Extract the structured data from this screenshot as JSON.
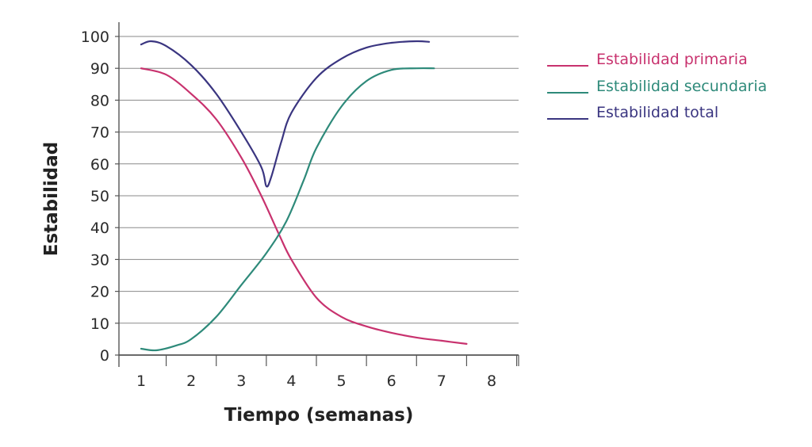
{
  "chart_data": {
    "type": "line",
    "title": "",
    "xlabel": "Tiempo (semanas)",
    "ylabel": "Estabilidad",
    "xlim": [
      1,
      8
    ],
    "ylim": [
      0,
      100
    ],
    "xticks": [
      "1",
      "2",
      "3",
      "4",
      "5",
      "6",
      "7",
      "8"
    ],
    "yticks": [
      "0",
      "10",
      "20",
      "30",
      "40",
      "50",
      "60",
      "70",
      "80",
      "90",
      "100"
    ],
    "grid": "horizontal",
    "legend_position": "right",
    "series": [
      {
        "name": "Estabilidad primaria",
        "color": "#c8326e",
        "x": [
          1.0,
          1.5,
          2.0,
          2.5,
          3.0,
          3.4,
          3.75,
          4.0,
          4.5,
          5.0,
          5.5,
          6.0,
          6.5,
          7.0,
          7.5
        ],
        "y": [
          90,
          88,
          82,
          74,
          62,
          50,
          38,
          30,
          18,
          12,
          9,
          7,
          5.5,
          4.5,
          3.5
        ]
      },
      {
        "name": "Estabilidad secundaria",
        "color": "#2e8a7a",
        "x": [
          1.0,
          1.3,
          1.7,
          2.0,
          2.5,
          3.0,
          3.5,
          3.9,
          4.25,
          4.5,
          5.0,
          5.5,
          6.0,
          6.5,
          6.85
        ],
        "y": [
          2,
          1.5,
          3,
          5,
          12,
          22,
          32,
          42,
          55,
          65,
          78,
          86,
          89.5,
          90,
          90
        ]
      },
      {
        "name": "Estabilidad total",
        "color": "#3a3580",
        "x": [
          1.0,
          1.2,
          1.5,
          2.0,
          2.5,
          3.0,
          3.4,
          3.5,
          3.6,
          3.8,
          4.0,
          4.5,
          5.0,
          5.5,
          6.0,
          6.5,
          6.75
        ],
        "y": [
          97.5,
          98.5,
          97,
          91,
          82,
          70,
          59,
          53,
          56,
          67,
          76,
          87,
          93,
          96.5,
          98,
          98.5,
          98.3
        ]
      }
    ]
  }
}
